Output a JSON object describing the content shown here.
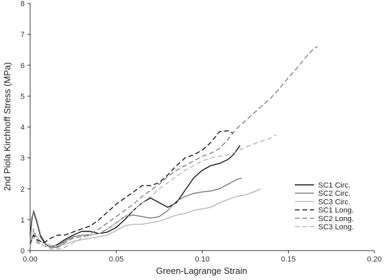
{
  "chart_data": {
    "type": "line",
    "title": "",
    "xlabel": "Green-Lagrange Strain",
    "ylabel": "2nd Piola Kirchhoff Stress (MPa)",
    "xlim": [
      0,
      0.2
    ],
    "ylim": [
      0,
      8
    ],
    "x_ticks": [
      "0.00",
      "0.05",
      "0.10",
      "0.15",
      "0.20"
    ],
    "y_ticks": [
      "0",
      "1",
      "2",
      "3",
      "4",
      "5",
      "6",
      "7",
      "8"
    ],
    "grid": false,
    "legend_position": "right",
    "series": [
      {
        "name": "SC1 Circ.",
        "color": "#111111",
        "dash": "solid",
        "x": [
          0,
          0.001,
          0.002,
          0.004,
          0.006,
          0.009,
          0.012,
          0.016,
          0.02,
          0.025,
          0.03,
          0.035,
          0.04,
          0.045,
          0.05,
          0.055,
          0.06,
          0.065,
          0.07,
          0.075,
          0.08,
          0.085,
          0.09,
          0.095,
          0.1,
          0.105,
          0.11,
          0.115,
          0.118,
          0.122
        ],
        "y": [
          0.5,
          1.05,
          1.25,
          0.9,
          0.45,
          0.2,
          0.1,
          0.2,
          0.35,
          0.5,
          0.62,
          0.62,
          0.55,
          0.6,
          0.75,
          1.0,
          1.3,
          1.55,
          1.7,
          1.55,
          1.4,
          1.55,
          1.95,
          2.35,
          2.6,
          2.75,
          2.82,
          2.95,
          3.1,
          3.4
        ]
      },
      {
        "name": "SC2 Circ.",
        "color": "#777777",
        "dash": "solid",
        "x": [
          0,
          0.001,
          0.002,
          0.004,
          0.006,
          0.01,
          0.015,
          0.02,
          0.025,
          0.03,
          0.035,
          0.04,
          0.045,
          0.05,
          0.055,
          0.06,
          0.065,
          0.07,
          0.075,
          0.08,
          0.085,
          0.09,
          0.095,
          0.1,
          0.105,
          0.11,
          0.115,
          0.12,
          0.123
        ],
        "y": [
          0.3,
          0.95,
          1.3,
          0.95,
          0.5,
          0.15,
          0.1,
          0.3,
          0.45,
          0.5,
          0.5,
          0.55,
          0.7,
          0.9,
          1.1,
          1.15,
          1.1,
          1.05,
          1.1,
          1.3,
          1.6,
          1.75,
          1.85,
          1.9,
          1.93,
          2.0,
          2.15,
          2.3,
          2.35
        ]
      },
      {
        "name": "SC3 Circ.",
        "color": "#b5b5b5",
        "dash": "solid",
        "x": [
          0,
          0.002,
          0.004,
          0.006,
          0.01,
          0.015,
          0.02,
          0.025,
          0.03,
          0.035,
          0.04,
          0.045,
          0.05,
          0.055,
          0.06,
          0.065,
          0.07,
          0.075,
          0.08,
          0.085,
          0.09,
          0.095,
          0.1,
          0.105,
          0.11,
          0.115,
          0.12,
          0.125,
          0.13,
          0.134
        ],
        "y": [
          0.2,
          0.55,
          0.45,
          0.3,
          0.2,
          0.15,
          0.2,
          0.3,
          0.35,
          0.4,
          0.45,
          0.5,
          0.65,
          0.8,
          0.85,
          0.85,
          0.9,
          0.95,
          1.05,
          1.15,
          1.2,
          1.3,
          1.35,
          1.4,
          1.55,
          1.65,
          1.75,
          1.8,
          1.9,
          2.0
        ]
      },
      {
        "name": "SC1 Long.",
        "color": "#111111",
        "dash": "long",
        "x": [
          0,
          0.002,
          0.004,
          0.008,
          0.012,
          0.016,
          0.02,
          0.025,
          0.03,
          0.035,
          0.04,
          0.045,
          0.05,
          0.055,
          0.06,
          0.065,
          0.07,
          0.075,
          0.08,
          0.085,
          0.09,
          0.095,
          0.1,
          0.105,
          0.11,
          0.115,
          0.118
        ],
        "y": [
          0.2,
          0.5,
          0.35,
          0.25,
          0.4,
          0.5,
          0.5,
          0.6,
          0.7,
          0.8,
          1.0,
          1.25,
          1.5,
          1.7,
          1.9,
          2.1,
          2.1,
          2.2,
          2.45,
          2.75,
          3.0,
          3.1,
          3.25,
          3.5,
          3.85,
          3.88,
          3.8
        ]
      },
      {
        "name": "SC2 Long.",
        "color": "#7f7f7f",
        "dash": "long",
        "x": [
          0,
          0.002,
          0.004,
          0.008,
          0.012,
          0.016,
          0.02,
          0.025,
          0.03,
          0.035,
          0.04,
          0.045,
          0.05,
          0.055,
          0.06,
          0.065,
          0.07,
          0.075,
          0.08,
          0.085,
          0.09,
          0.095,
          0.1,
          0.105,
          0.11,
          0.115,
          0.12,
          0.125,
          0.13,
          0.135,
          0.14,
          0.145,
          0.15,
          0.155,
          0.16,
          0.165,
          0.167
        ],
        "y": [
          0.1,
          0.7,
          0.3,
          0.15,
          0.1,
          0.1,
          0.25,
          0.4,
          0.45,
          0.55,
          0.7,
          0.9,
          1.1,
          1.3,
          1.5,
          1.75,
          1.95,
          2.15,
          2.4,
          2.6,
          2.75,
          2.9,
          3.05,
          3.15,
          3.3,
          3.6,
          3.95,
          4.2,
          4.45,
          4.7,
          4.95,
          5.25,
          5.6,
          5.9,
          6.25,
          6.55,
          6.6
        ]
      },
      {
        "name": "SC3 Long.",
        "color": "#b5b5b5",
        "dash": "long",
        "x": [
          0,
          0.002,
          0.004,
          0.008,
          0.012,
          0.016,
          0.02,
          0.025,
          0.03,
          0.035,
          0.04,
          0.045,
          0.05,
          0.055,
          0.06,
          0.065,
          0.07,
          0.075,
          0.08,
          0.085,
          0.09,
          0.095,
          0.1,
          0.105,
          0.11,
          0.115,
          0.12,
          0.125,
          0.13,
          0.135,
          0.14,
          0.143
        ],
        "y": [
          0.15,
          0.45,
          0.25,
          0.15,
          0.05,
          0.05,
          0.1,
          0.25,
          0.4,
          0.5,
          0.55,
          0.7,
          0.9,
          1.1,
          1.3,
          1.55,
          1.75,
          2.0,
          2.2,
          2.4,
          2.6,
          2.75,
          2.9,
          3.0,
          3.05,
          3.1,
          3.2,
          3.35,
          3.45,
          3.55,
          3.65,
          3.75
        ]
      }
    ]
  }
}
